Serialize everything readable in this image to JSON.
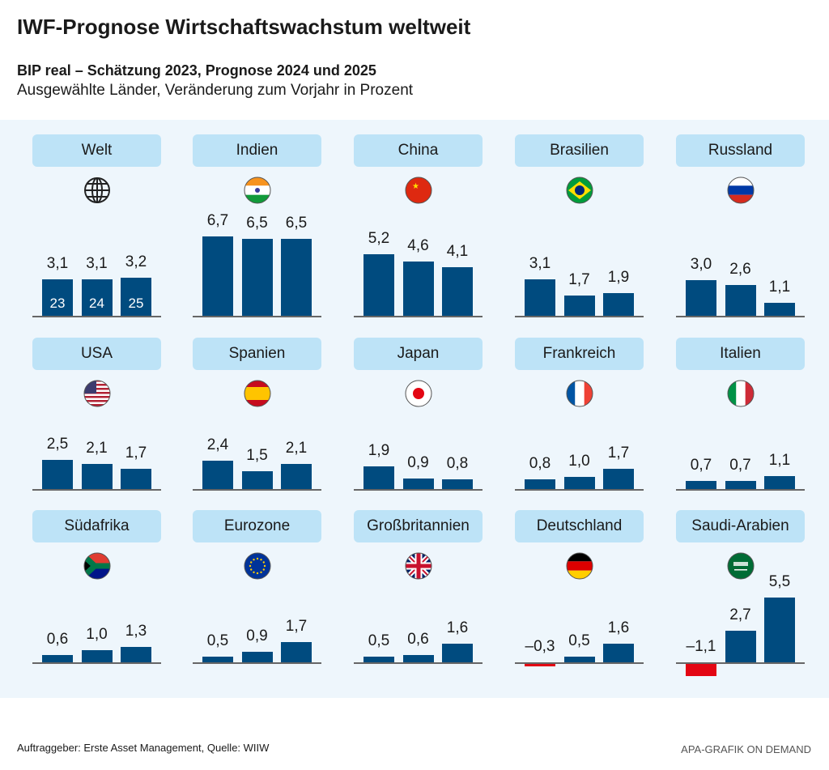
{
  "title": "IWF-Prognose Wirtschaftswachstum weltweit",
  "subtitle": "BIP real  – Schätzung 2023, Prognose 2024 und 2025",
  "subtitle2": "Ausgewählte Länder, Veränderung zum Vorjahr in Prozent",
  "source": "Auftraggeber: Erste Asset Management, Quelle: WIIW",
  "credit": "APA-GRAFIK ON DEMAND",
  "colors": {
    "positive": "#004b7f",
    "negative": "#e30613",
    "label_bg": "#bde3f7",
    "panel_bg": "#eef6fc"
  },
  "chart_data": {
    "type": "bar",
    "categories": [
      "23",
      "24",
      "25"
    ],
    "year_labels": [
      "23",
      "24",
      "25"
    ],
    "series": [
      {
        "name": "Welt",
        "flag": "globe-icon",
        "values": [
          3.1,
          3.1,
          3.2
        ],
        "labels": [
          "3,1",
          "3,1",
          "3,2"
        ]
      },
      {
        "name": "Indien",
        "flag": "india-flag-icon",
        "values": [
          6.7,
          6.5,
          6.5
        ],
        "labels": [
          "6,7",
          "6,5",
          "6,5"
        ]
      },
      {
        "name": "China",
        "flag": "china-flag-icon",
        "values": [
          5.2,
          4.6,
          4.1
        ],
        "labels": [
          "5,2",
          "4,6",
          "4,1"
        ]
      },
      {
        "name": "Brasilien",
        "flag": "brazil-flag-icon",
        "values": [
          3.1,
          1.7,
          1.9
        ],
        "labels": [
          "3,1",
          "1,7",
          "1,9"
        ]
      },
      {
        "name": "Russland",
        "flag": "russia-flag-icon",
        "values": [
          3.0,
          2.6,
          1.1
        ],
        "labels": [
          "3,0",
          "2,6",
          "1,1"
        ]
      },
      {
        "name": "USA",
        "flag": "usa-flag-icon",
        "values": [
          2.5,
          2.1,
          1.7
        ],
        "labels": [
          "2,5",
          "2,1",
          "1,7"
        ]
      },
      {
        "name": "Spanien",
        "flag": "spain-flag-icon",
        "values": [
          2.4,
          1.5,
          2.1
        ],
        "labels": [
          "2,4",
          "1,5",
          "2,1"
        ]
      },
      {
        "name": "Japan",
        "flag": "japan-flag-icon",
        "values": [
          1.9,
          0.9,
          0.8
        ],
        "labels": [
          "1,9",
          "0,9",
          "0,8"
        ]
      },
      {
        "name": "Frankreich",
        "flag": "france-flag-icon",
        "values": [
          0.8,
          1.0,
          1.7
        ],
        "labels": [
          "0,8",
          "1,0",
          "1,7"
        ]
      },
      {
        "name": "Italien",
        "flag": "italy-flag-icon",
        "values": [
          0.7,
          0.7,
          1.1
        ],
        "labels": [
          "0,7",
          "0,7",
          "1,1"
        ]
      },
      {
        "name": "Südafrika",
        "flag": "south-africa-flag-icon",
        "values": [
          0.6,
          1.0,
          1.3
        ],
        "labels": [
          "0,6",
          "1,0",
          "1,3"
        ]
      },
      {
        "name": "Eurozone",
        "flag": "eu-flag-icon",
        "values": [
          0.5,
          0.9,
          1.7
        ],
        "labels": [
          "0,5",
          "0,9",
          "1,7"
        ]
      },
      {
        "name": "Großbritannien",
        "flag": "uk-flag-icon",
        "values": [
          0.5,
          0.6,
          1.6
        ],
        "labels": [
          "0,5",
          "0,6",
          "1,6"
        ]
      },
      {
        "name": "Deutschland",
        "flag": "germany-flag-icon",
        "values": [
          -0.3,
          0.5,
          1.6
        ],
        "labels": [
          "–0,3",
          "0,5",
          "1,6"
        ]
      },
      {
        "name": "Saudi-Arabien",
        "flag": "saudi-arabia-flag-icon",
        "values": [
          -1.1,
          2.7,
          5.5
        ],
        "labels": [
          "–1,1",
          "2,7",
          "5,5"
        ]
      }
    ],
    "grid": false,
    "legend": "none"
  }
}
